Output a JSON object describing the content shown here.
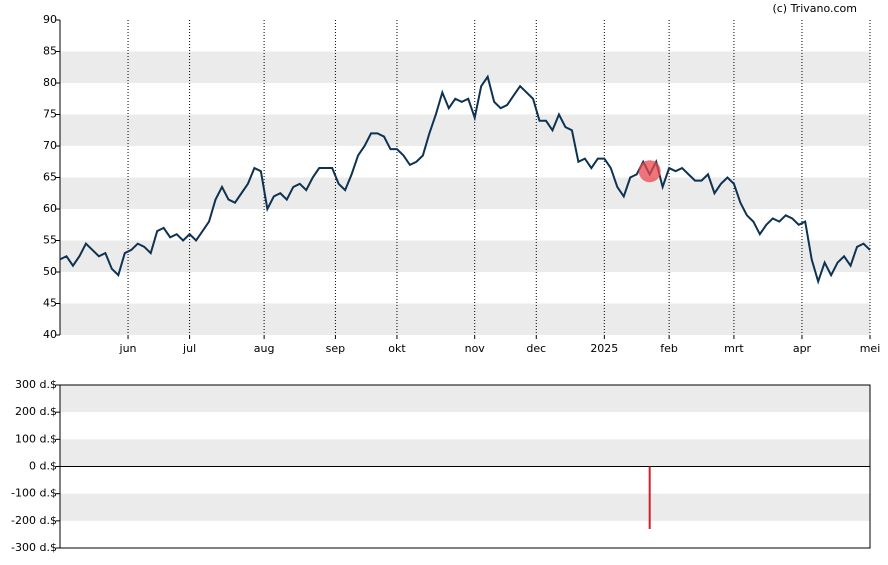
{
  "credit": "(c) Trivano.com",
  "chart_data": [
    {
      "type": "line",
      "x": [
        0,
        2,
        4,
        6,
        8,
        10,
        12,
        14,
        16,
        18,
        20,
        22,
        24,
        26,
        28,
        30,
        32,
        34,
        36,
        38,
        40,
        42,
        44,
        46,
        48,
        50,
        52,
        54,
        56,
        58,
        60,
        62,
        64,
        66,
        68,
        70,
        72,
        74,
        76,
        78,
        80,
        82,
        84,
        86,
        88,
        90,
        92,
        94,
        96,
        98,
        100,
        102,
        104,
        106,
        108,
        110,
        112,
        114,
        116,
        118,
        120,
        122,
        124,
        126,
        128,
        130,
        132,
        134,
        136,
        138,
        140,
        142,
        144,
        146,
        148,
        150,
        152,
        154,
        156,
        158,
        160,
        162,
        164,
        166,
        168,
        170,
        172,
        174,
        176,
        178,
        180,
        182,
        184,
        186,
        188,
        190,
        192,
        194,
        196,
        198,
        200,
        202,
        204,
        206,
        208,
        210,
        212,
        214,
        216,
        218,
        220,
        222,
        224,
        226,
        228,
        230,
        232,
        234,
        236,
        238,
        240,
        242,
        244,
        246,
        248,
        250
      ],
      "series": [
        {
          "color": "#0d3252",
          "values": [
            52,
            52.5,
            51,
            52.5,
            54.5,
            53.5,
            52.5,
            53,
            50.5,
            49.5,
            53,
            53.5,
            54.5,
            54,
            53,
            56.5,
            57,
            55.5,
            56,
            55,
            56,
            55,
            56.5,
            58,
            61.5,
            63.5,
            61.5,
            61,
            62.5,
            64,
            66.5,
            66,
            60,
            62,
            62.5,
            61.5,
            63.5,
            64,
            63,
            65,
            66.5,
            66.5,
            66.5,
            64,
            63,
            65.5,
            68.5,
            70,
            72,
            72,
            71.5,
            69.5,
            69.5,
            68.5,
            67,
            67.5,
            68.5,
            72,
            75,
            78.5,
            76,
            77.5,
            77,
            77.5,
            74.5,
            79.5,
            81,
            77,
            76,
            76.5,
            78,
            79.5,
            78.5,
            77.5,
            74,
            74,
            72.5,
            75,
            73,
            72.5,
            67.5,
            68,
            66.5,
            68,
            68,
            66.5,
            63.5,
            62,
            65,
            65.5,
            67.5,
            65.5,
            67.5,
            63.5,
            66.5,
            66,
            66.5,
            65.5,
            64.5,
            64.5,
            65.5,
            62.5,
            64,
            65,
            64,
            61,
            59,
            58,
            56,
            57.5,
            58.5,
            58,
            59,
            58.5,
            57.5,
            58,
            52,
            48.5,
            51.5,
            49.5,
            51.5,
            52.5,
            51,
            54,
            54.5,
            53.5
          ]
        }
      ],
      "markers": {
        "x": [
          182
        ],
        "y": [
          66
        ],
        "color": "#e8474c"
      },
      "xlim": [
        0,
        250
      ],
      "xticks": [
        {
          "value": 21,
          "label": "jun"
        },
        {
          "value": 40,
          "label": "jul"
        },
        {
          "value": 63,
          "label": "aug"
        },
        {
          "value": 85,
          "label": "sep"
        },
        {
          "value": 104,
          "label": "okt"
        },
        {
          "value": 128,
          "label": "nov"
        },
        {
          "value": 147,
          "label": "dec"
        },
        {
          "value": 168,
          "label": "2025"
        },
        {
          "value": 188,
          "label": "feb"
        },
        {
          "value": 208,
          "label": "mrt"
        },
        {
          "value": 229,
          "label": "apr"
        },
        {
          "value": 250,
          "label": "mei"
        }
      ],
      "ylim": [
        40,
        90
      ],
      "yticks": [
        40,
        45,
        50,
        55,
        60,
        65,
        70,
        75,
        80,
        85,
        90
      ]
    },
    {
      "type": "bar",
      "x": [
        182
      ],
      "values": [
        -230
      ],
      "color": "#d0202a",
      "xlim": [
        0,
        250
      ],
      "ylim": [
        -300,
        300
      ],
      "yticks": [
        {
          "value": -300,
          "label": "-300 d.$"
        },
        {
          "value": -200,
          "label": "-200 d.$"
        },
        {
          "value": -100,
          "label": "-100 d.$"
        },
        {
          "value": 0,
          "label": "0 d.$"
        },
        {
          "value": 100,
          "label": "100 d.$"
        },
        {
          "value": 200,
          "label": "200 d.$"
        },
        {
          "value": 300,
          "label": "300 d.$"
        }
      ]
    }
  ]
}
